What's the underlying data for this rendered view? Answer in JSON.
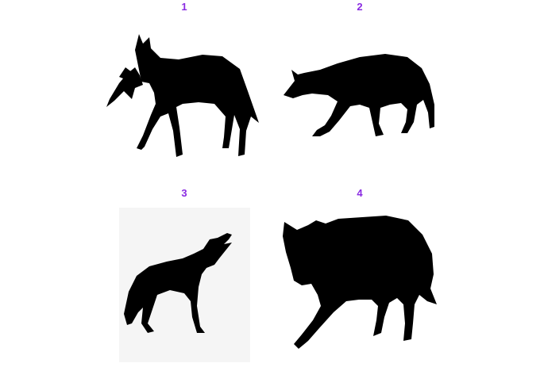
{
  "panels": [
    {
      "number": "1",
      "icon": "coyote-carrying-prey-icon"
    },
    {
      "number": "2",
      "icon": "coyote-walking-icon"
    },
    {
      "number": "3",
      "icon": "coyote-howling-icon"
    },
    {
      "number": "4",
      "icon": "coyote-stalking-icon"
    }
  ],
  "colors": {
    "number_color": "#8a2be2",
    "silhouette_color": "#000000",
    "background": "#ffffff"
  }
}
